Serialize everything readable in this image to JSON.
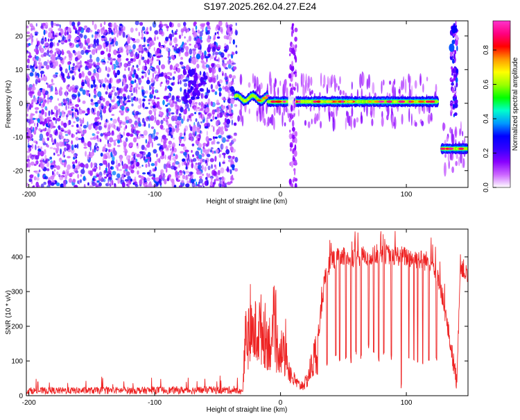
{
  "title": "S197.2025.262.04.27.E24",
  "chart_data": [
    {
      "type": "heatmap",
      "xlabel": "Height of straight line (km)",
      "ylabel": "Frequency (Hz)",
      "xlim": [
        -202,
        149
      ],
      "ylim": [
        -25,
        24.5
      ],
      "xticks": [
        -200,
        -100,
        0,
        100
      ],
      "yticks": [
        -20,
        -10,
        0,
        10,
        20
      ],
      "colorbar": {
        "label": "Normalized spectral amplitude",
        "range": [
          0,
          0.97
        ],
        "ticks": [
          "0.0",
          "0.2",
          "0.4",
          "0.6",
          "0.8"
        ],
        "colors": [
          "#ffffff",
          "#cc66ff",
          "#8800ff",
          "#3300ff",
          "#0000ff",
          "#0099ff",
          "#00ffcc",
          "#00ff00",
          "#99ff00",
          "#ffff00",
          "#ff9900",
          "#ff0000",
          "#ff0080",
          "#ff33cc"
        ]
      },
      "features": [
        {
          "region": "noise",
          "x_range": [
            -202,
            -35
          ],
          "freq_range": [
            -25,
            24
          ],
          "amplitude": 0.15
        },
        {
          "region": "cluster",
          "x": -68,
          "freq": 5,
          "amplitude": 0.22
        },
        {
          "region": "main-track",
          "x_range": [
            -36,
            125
          ],
          "freq": 0.5,
          "amplitude": 0.6
        },
        {
          "region": "vertical-streak",
          "x": 10,
          "freq_range": [
            -25,
            24
          ],
          "amplitude": 0.12
        },
        {
          "region": "late-track",
          "x_range": [
            128,
            149
          ],
          "freq": -13.5,
          "amplitude": 0.75
        },
        {
          "region": "late-streak",
          "x": 138,
          "freq_range": [
            -4,
            24
          ],
          "amplitude": 0.3
        }
      ]
    },
    {
      "type": "line",
      "xlabel": "Height of straight line (km)",
      "ylabel": "SNR (10 * v/v)",
      "xlim": [
        -202,
        149
      ],
      "ylim": [
        0,
        480
      ],
      "xticks": [
        -200,
        -100,
        0,
        100
      ],
      "yticks": [
        0,
        100,
        200,
        300,
        400
      ],
      "line_color": "#ee2222",
      "envelope": [
        {
          "x": -202,
          "y": 15
        },
        {
          "x": -40,
          "y": 17
        },
        {
          "x": -30,
          "y": 12
        },
        {
          "x": -28,
          "y": 200
        },
        {
          "x": -15,
          "y": 240
        },
        {
          "x": -10,
          "y": 200
        },
        {
          "x": 0,
          "y": 170
        },
        {
          "x": 5,
          "y": 120
        },
        {
          "x": 10,
          "y": 60
        },
        {
          "x": 15,
          "y": 35
        },
        {
          "x": 20,
          "y": 45
        },
        {
          "x": 25,
          "y": 110
        },
        {
          "x": 30,
          "y": 180
        },
        {
          "x": 35,
          "y": 330
        },
        {
          "x": 40,
          "y": 395
        },
        {
          "x": 60,
          "y": 400
        },
        {
          "x": 80,
          "y": 410
        },
        {
          "x": 100,
          "y": 400
        },
        {
          "x": 120,
          "y": 385
        },
        {
          "x": 128,
          "y": 300
        },
        {
          "x": 135,
          "y": 150
        },
        {
          "x": 140,
          "y": 40
        },
        {
          "x": 143,
          "y": 380
        },
        {
          "x": 149,
          "y": 340
        }
      ],
      "dropouts": [
        {
          "x": 37,
          "y": 75
        },
        {
          "x": 44,
          "y": 110
        },
        {
          "x": 47,
          "y": 100
        },
        {
          "x": 52,
          "y": 105
        },
        {
          "x": 56,
          "y": 95
        },
        {
          "x": 60,
          "y": 110
        },
        {
          "x": 64,
          "y": 100
        },
        {
          "x": 70,
          "y": 130
        },
        {
          "x": 74,
          "y": 110
        },
        {
          "x": 78,
          "y": 100
        },
        {
          "x": 82,
          "y": 110
        },
        {
          "x": 88,
          "y": 100
        },
        {
          "x": 96,
          "y": 20
        },
        {
          "x": 102,
          "y": 100
        },
        {
          "x": 106,
          "y": 90
        },
        {
          "x": 109,
          "y": 95
        },
        {
          "x": 113,
          "y": 85
        },
        {
          "x": 118,
          "y": 100
        },
        {
          "x": 124,
          "y": 90
        }
      ]
    }
  ]
}
